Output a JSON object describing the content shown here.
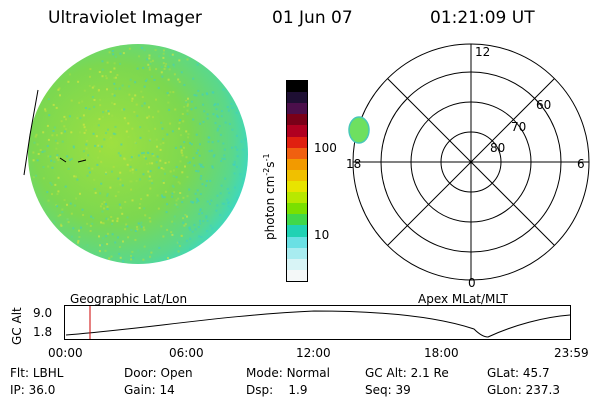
{
  "header": {
    "title": "Ultraviolet Imager",
    "date": "01 Jun 07",
    "time": "01:21:09 UT"
  },
  "colorbar": {
    "unit_label": "photon cm",
    "unit_exp1": "-2",
    "unit_mid": "s",
    "unit_exp2": "-1",
    "tick_upper": "100",
    "tick_lower": "10",
    "colors": [
      "#000000",
      "#1e0f33",
      "#4b0f4b",
      "#7a0018",
      "#b00020",
      "#e02010",
      "#f06010",
      "#f29a00",
      "#f0c000",
      "#e8e400",
      "#b8e800",
      "#7ae000",
      "#40d84a",
      "#20d2b4",
      "#6ae0e4",
      "#a8ecf0",
      "#d8f4f6",
      "#f4f8f8"
    ]
  },
  "left_map": {
    "label": "Geographic Lat/Lon",
    "fill_primary": "#7cd850",
    "fill_edge": "#38d8c8"
  },
  "polar_plot": {
    "label": "Apex MLat/MLT",
    "mlt_labels": {
      "top": "12",
      "right": "6",
      "bottom": "0",
      "left": "18"
    },
    "lat_labels": [
      "60",
      "70",
      "80"
    ],
    "blob_color": "#6ee060"
  },
  "altitude_plot": {
    "ylabel": "GC Alt",
    "y_ticks": [
      "9.0",
      "1.8"
    ],
    "x_ticks": [
      "00:00",
      "06:00",
      "12:00",
      "18:00",
      "23:59"
    ],
    "marker_color": "#cc0000"
  },
  "info": {
    "flt_label": "Flt:",
    "flt_value": "LBHL",
    "door_label": "Door:",
    "door_value": "Open",
    "mode_label": "Mode:",
    "mode_value": "Normal",
    "gcalt_label": "GC Alt:",
    "gcalt_value": "2.1 Re",
    "glat_label": "GLat:",
    "glat_value": "45.7",
    "ip_label": "IP:",
    "ip_value": "36.0",
    "gain_label": "Gain:",
    "gain_value": "14",
    "dsp_label": "Dsp:",
    "dsp_value": "1.9",
    "seq_label": "Seq:",
    "seq_value": "39",
    "glon_label": "GLon:",
    "glon_value": "237.3"
  }
}
